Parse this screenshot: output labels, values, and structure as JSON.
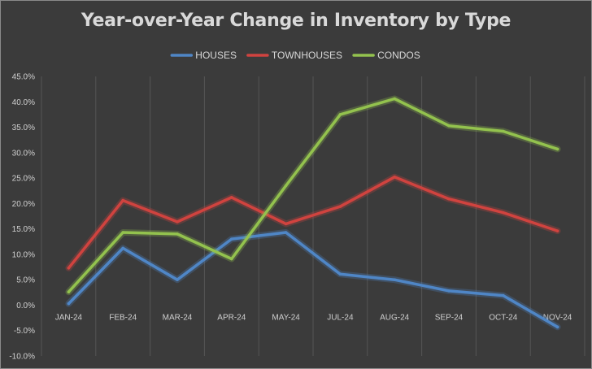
{
  "chart_data": {
    "type": "line",
    "title": "Year-over-Year Change in Inventory by Type",
    "xlabel": "",
    "ylabel": "",
    "categories": [
      "JAN-24",
      "FEB-24",
      "MAR-24",
      "APR-24",
      "MAY-24",
      "JUL-24",
      "AUG-24",
      "SEP-24",
      "OCT-24",
      "NOV-24"
    ],
    "ylim": [
      -10,
      45
    ],
    "ytick_step": 5,
    "ytick_labels": [
      "-10.0%",
      "-5.0%",
      "0.0%",
      "5.0%",
      "10.0%",
      "15.0%",
      "20.0%",
      "25.0%",
      "30.0%",
      "35.0%",
      "40.0%",
      "45.0%"
    ],
    "y_format": "percent",
    "grid": "vertical",
    "legend_position": "top",
    "series": [
      {
        "name": "HOUSES",
        "color": "#4f86c6",
        "values": [
          0.3,
          11.2,
          5.0,
          13.0,
          14.3,
          6.1,
          5.0,
          2.8,
          1.9,
          -4.3
        ]
      },
      {
        "name": "TOWNHOUSES",
        "color": "#d0433f",
        "values": [
          7.3,
          20.6,
          16.4,
          21.2,
          16.0,
          19.4,
          25.2,
          20.9,
          18.2,
          14.6
        ]
      },
      {
        "name": "CONDOS",
        "color": "#93c24e",
        "values": [
          2.6,
          14.3,
          14.0,
          9.1,
          23.5,
          37.5,
          40.6,
          35.3,
          34.2,
          30.7
        ]
      }
    ]
  }
}
